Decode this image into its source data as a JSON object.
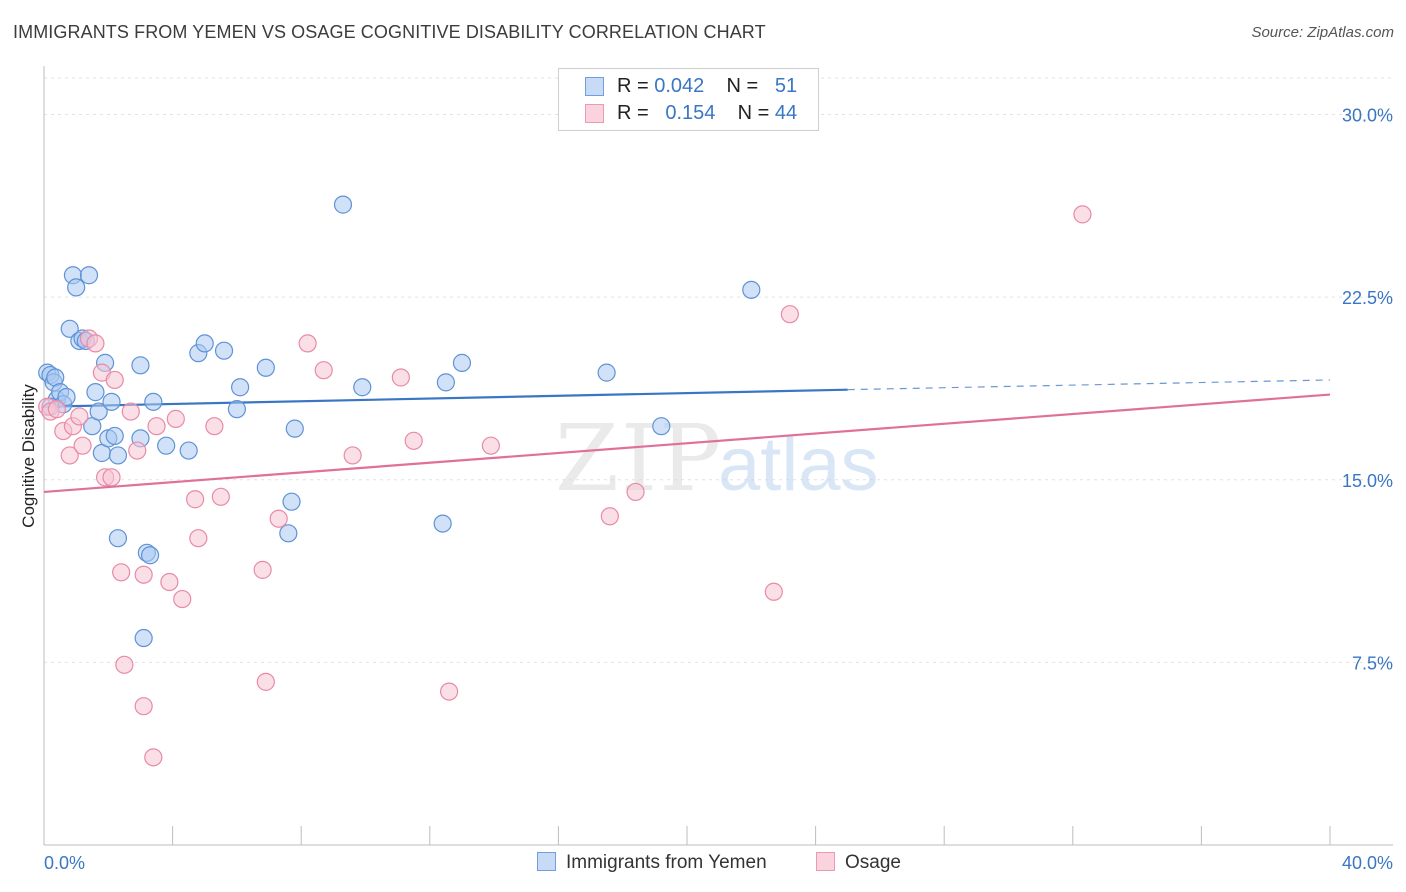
{
  "header": {
    "title": "IMMIGRANTS FROM YEMEN VS OSAGE COGNITIVE DISABILITY CORRELATION CHART",
    "source": "Source: ZipAtlas.com"
  },
  "legend": {
    "rows": [
      {
        "r_label": "R =",
        "r_value": "0.042",
        "n_label": "N =",
        "n_value": "51",
        "color": "#a9c8f2",
        "border": "#6f9fdc"
      },
      {
        "r_label": "R =",
        "r_value": "0.154",
        "n_label": "N =",
        "n_value": "44",
        "color": "#f8c4d4",
        "border": "#ec9ab4"
      }
    ]
  },
  "bottom_legend": [
    {
      "label": "Immigrants from Yemen",
      "color": "#a9c8f2",
      "border": "#6f9fdc"
    },
    {
      "label": "Osage",
      "color": "#f8c4d4",
      "border": "#ec9ab4"
    }
  ],
  "watermark": {
    "zip": "ZIP",
    "atlas": "atlas"
  },
  "chart_data": {
    "type": "scatter",
    "title": "IMMIGRANTS FROM YEMEN VS OSAGE COGNITIVE DISABILITY CORRELATION CHART",
    "xlabel": "",
    "ylabel": "Cognitive Disability",
    "xlim": [
      0,
      40
    ],
    "ylim": [
      0,
      31.5
    ],
    "x_tick_labels": [
      "0.0%",
      "40.0%"
    ],
    "y_ticks": [
      7.5,
      15.0,
      22.5,
      30.0
    ],
    "y_tick_labels": [
      "7.5%",
      "15.0%",
      "22.5%",
      "30.0%"
    ],
    "grid": true,
    "colors": {
      "series1": "#3a76c4",
      "series2": "#e0709a",
      "axis_text": "#3a76c4"
    },
    "series": [
      {
        "name": "Immigrants from Yemen",
        "points": [
          [
            0.1,
            19.4
          ],
          [
            0.2,
            19.3
          ],
          [
            0.3,
            19.0
          ],
          [
            0.35,
            19.2
          ],
          [
            0.4,
            18.3
          ],
          [
            0.5,
            18.6
          ],
          [
            0.6,
            18.1
          ],
          [
            0.7,
            18.4
          ],
          [
            0.8,
            21.2
          ],
          [
            0.9,
            23.4
          ],
          [
            1.0,
            22.9
          ],
          [
            1.1,
            20.7
          ],
          [
            1.2,
            20.8
          ],
          [
            1.3,
            20.7
          ],
          [
            1.4,
            23.4
          ],
          [
            1.5,
            17.2
          ],
          [
            1.6,
            18.6
          ],
          [
            1.7,
            17.8
          ],
          [
            1.8,
            16.1
          ],
          [
            1.9,
            19.8
          ],
          [
            2.0,
            16.7
          ],
          [
            2.1,
            18.2
          ],
          [
            2.2,
            16.8
          ],
          [
            2.3,
            16.0
          ],
          [
            2.3,
            12.6
          ],
          [
            3.0,
            19.7
          ],
          [
            3.0,
            16.7
          ],
          [
            3.1,
            8.5
          ],
          [
            3.2,
            12.0
          ],
          [
            3.3,
            11.9
          ],
          [
            3.4,
            18.2
          ],
          [
            3.8,
            16.4
          ],
          [
            4.5,
            16.2
          ],
          [
            4.8,
            20.2
          ],
          [
            5.0,
            20.6
          ],
          [
            5.6,
            20.3
          ],
          [
            6.0,
            17.9
          ],
          [
            6.1,
            18.8
          ],
          [
            6.9,
            19.6
          ],
          [
            7.7,
            14.1
          ],
          [
            7.8,
            17.1
          ],
          [
            7.6,
            12.8
          ],
          [
            9.3,
            26.3
          ],
          [
            9.9,
            18.8
          ],
          [
            12.4,
            13.2
          ],
          [
            12.5,
            19.0
          ],
          [
            13.0,
            19.8
          ],
          [
            17.5,
            19.4
          ],
          [
            19.2,
            17.2
          ],
          [
            22.0,
            22.8
          ],
          [
            0.2,
            18.0
          ]
        ],
        "trend": {
          "x0": 0,
          "y0": 18.0,
          "x1": 25.0,
          "y1": 18.7,
          "dash_to_x": 40,
          "dash_to_y": 19.1
        }
      },
      {
        "name": "Osage",
        "points": [
          [
            0.1,
            18.0
          ],
          [
            0.2,
            17.8
          ],
          [
            0.4,
            17.9
          ],
          [
            0.6,
            17.0
          ],
          [
            0.8,
            16.0
          ],
          [
            0.9,
            17.2
          ],
          [
            1.1,
            17.6
          ],
          [
            1.2,
            16.4
          ],
          [
            1.4,
            20.8
          ],
          [
            1.6,
            20.6
          ],
          [
            1.8,
            19.4
          ],
          [
            1.9,
            15.1
          ],
          [
            2.1,
            15.1
          ],
          [
            2.2,
            19.1
          ],
          [
            2.4,
            11.2
          ],
          [
            2.5,
            7.4
          ],
          [
            2.7,
            17.8
          ],
          [
            2.9,
            16.2
          ],
          [
            3.1,
            11.1
          ],
          [
            3.1,
            5.7
          ],
          [
            3.4,
            3.6
          ],
          [
            3.5,
            17.2
          ],
          [
            3.9,
            10.8
          ],
          [
            4.1,
            17.5
          ],
          [
            4.3,
            10.1
          ],
          [
            4.7,
            14.2
          ],
          [
            4.8,
            12.6
          ],
          [
            5.3,
            17.2
          ],
          [
            5.5,
            14.3
          ],
          [
            6.8,
            11.3
          ],
          [
            6.9,
            6.7
          ],
          [
            7.3,
            13.4
          ],
          [
            8.2,
            20.6
          ],
          [
            8.7,
            19.5
          ],
          [
            9.6,
            16.0
          ],
          [
            11.1,
            19.2
          ],
          [
            11.5,
            16.6
          ],
          [
            12.6,
            6.3
          ],
          [
            13.9,
            16.4
          ],
          [
            17.6,
            13.5
          ],
          [
            18.4,
            14.5
          ],
          [
            22.7,
            10.4
          ],
          [
            23.2,
            21.8
          ],
          [
            32.3,
            25.9
          ]
        ],
        "trend": {
          "x0": 0,
          "y0": 14.5,
          "x1": 40,
          "y1": 18.5
        }
      }
    ]
  }
}
